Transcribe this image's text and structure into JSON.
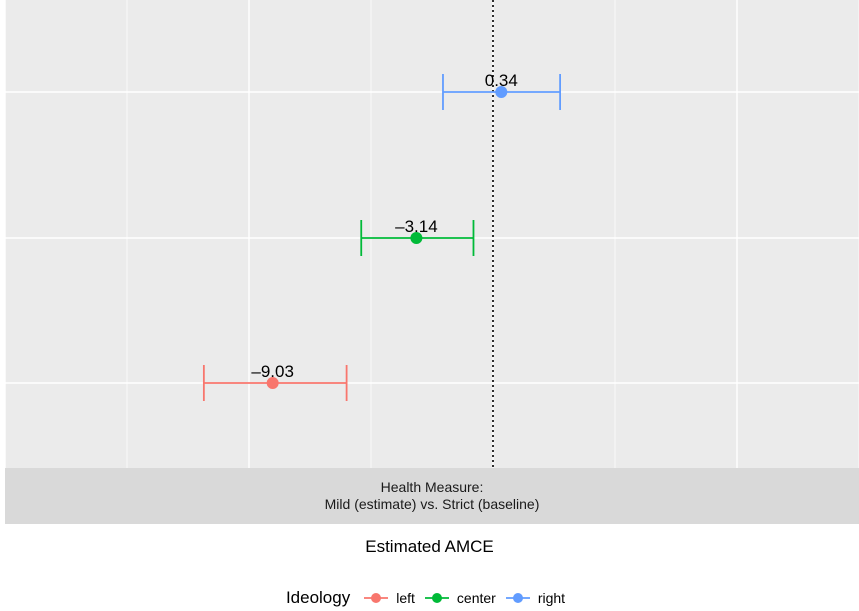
{
  "chart_data": {
    "type": "point-range",
    "facet_label_line1": "Health Measure:",
    "facet_label_line2": "Mild (estimate) vs. Strict (baseline)",
    "xlabel": "Estimated AMCE",
    "legend_title": "Ideology",
    "reference_line": 0,
    "xlim": [
      -20,
      15
    ],
    "grid": true,
    "legend_position": "bottom",
    "series": [
      {
        "name": "right",
        "estimate": 0.34,
        "ci": [
          -2.05,
          2.75
        ],
        "label": "0.34",
        "color": "#619CFF"
      },
      {
        "name": "center",
        "estimate": -3.14,
        "ci": [
          -5.4,
          -0.8
        ],
        "label": "–3.14",
        "color": "#00BA38"
      },
      {
        "name": "left",
        "estimate": -9.03,
        "ci": [
          -11.85,
          -6.0
        ],
        "label": "–9.03",
        "color": "#F8766D"
      }
    ]
  }
}
